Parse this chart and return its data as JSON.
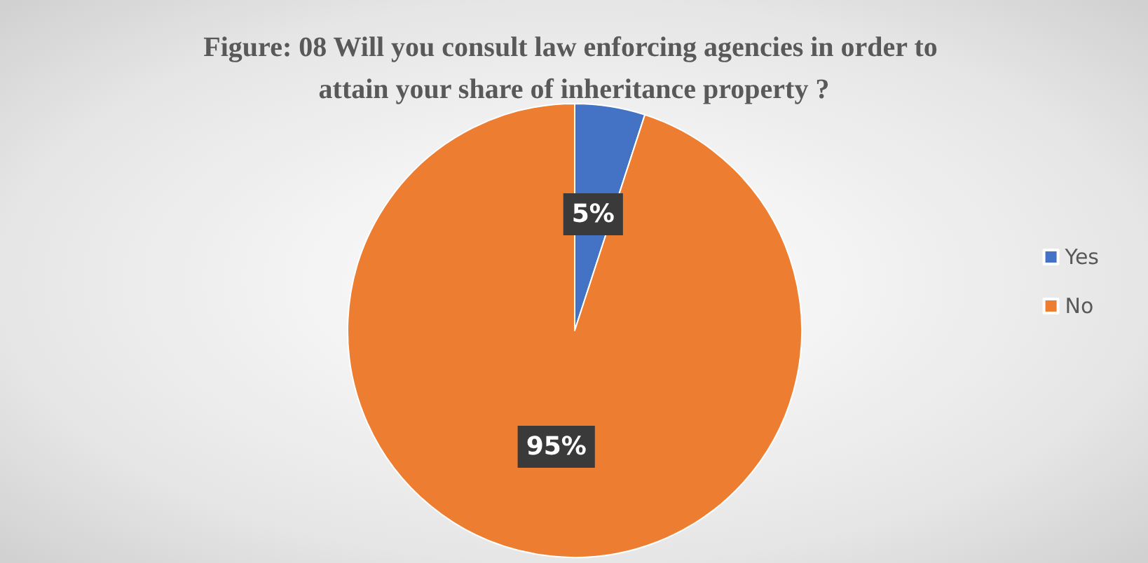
{
  "chart_data": {
    "type": "pie",
    "title": "Figure: 08 Will you consult law enforcing agencies in order to attain your share of inheritance property ?",
    "categories": [
      "Yes",
      "No"
    ],
    "values": [
      5,
      95
    ],
    "colors": [
      "#4472c4",
      "#ed7d31"
    ],
    "value_labels": [
      "5%",
      "95%"
    ],
    "legend": "right"
  }
}
